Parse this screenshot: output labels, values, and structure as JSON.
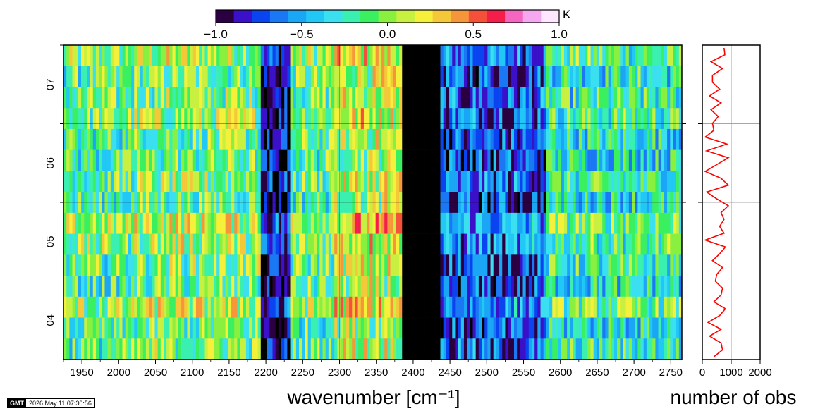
{
  "chart_data": [
    {
      "type": "heatmap",
      "colorbar": {
        "unit": "K",
        "ticks": [
          -1.0,
          -0.5,
          0.0,
          0.5,
          1.0
        ],
        "tick_labels": [
          "−1.0",
          "−0.5",
          "0.0",
          "0.5",
          "1.0"
        ],
        "colors": [
          "#2a0040",
          "#3a10c8",
          "#0a44f0",
          "#1a78f5",
          "#1aa6f5",
          "#22c8f5",
          "#3ae0f0",
          "#3af0b0",
          "#3af060",
          "#8af040",
          "#c8f040",
          "#f5f03a",
          "#f5c83a",
          "#f5963a",
          "#f5503a",
          "#f51e4a",
          "#f566c0",
          "#f5a8f0",
          "#ffe8ff"
        ]
      },
      "xlabel": "wavenumber [cm⁻¹]",
      "xlim": [
        1925,
        2765
      ],
      "x_ticks": [
        1950,
        2000,
        2050,
        2100,
        2150,
        2200,
        2250,
        2300,
        2350,
        2400,
        2450,
        2500,
        2550,
        2600,
        2650,
        2700,
        2750
      ],
      "y_ticks": [
        "04",
        "05",
        "06",
        "07"
      ],
      "rows": 15,
      "row_bands": [
        {
          "from": 1925,
          "to": 2020,
          "mean": -0.1
        },
        {
          "from": 2020,
          "to": 2190,
          "mean": 0.0
        },
        {
          "from": 2190,
          "to": 2230,
          "mean": -0.85
        },
        {
          "from": 2230,
          "to": 2290,
          "mean": -0.05
        },
        {
          "from": 2290,
          "to": 2385,
          "mean": 0.15
        },
        {
          "from": 2385,
          "to": 2435,
          "mean": -1.2
        },
        {
          "from": 2435,
          "to": 2580,
          "mean": -0.65
        },
        {
          "from": 2580,
          "to": 2765,
          "mean": -0.2
        }
      ]
    },
    {
      "type": "line",
      "xlabel": "number of obs",
      "xlim": [
        0,
        2000
      ],
      "x_ticks": [
        0,
        1000,
        2000
      ],
      "tick_labels": [
        "0",
        "1000",
        "2000"
      ],
      "color": "#ff0000",
      "values": [
        750,
        780,
        300,
        700,
        350,
        350,
        600,
        250,
        650,
        300,
        550,
        350,
        400,
        100,
        850,
        150,
        900,
        500,
        100,
        650,
        900,
        150,
        500,
        900,
        650,
        750,
        600,
        750,
        100,
        800,
        600,
        350,
        700,
        500,
        450,
        700,
        650,
        400,
        800,
        600,
        200,
        650,
        250,
        650,
        700,
        400
      ]
    }
  ],
  "stamp": {
    "logo": "GMT",
    "timestamp": "2026 May 11 07:30:56"
  }
}
